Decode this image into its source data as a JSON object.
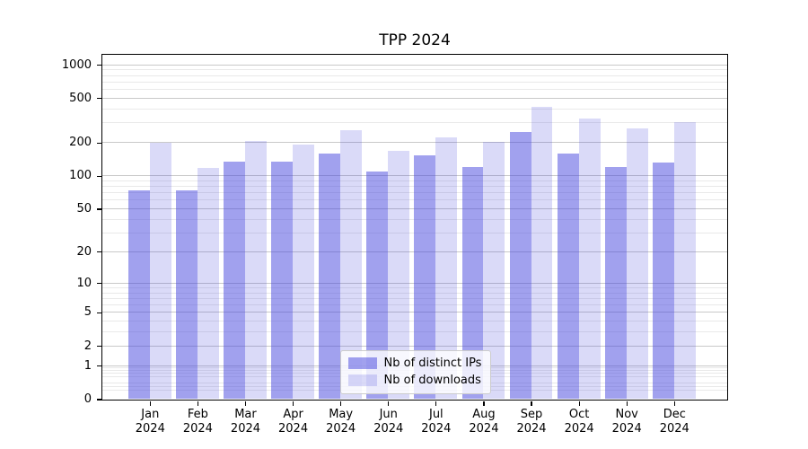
{
  "chart_data": {
    "type": "bar",
    "title": "TPP 2024",
    "categories": [
      "Jan 2024",
      "Feb 2024",
      "Mar 2024",
      "Apr 2024",
      "May 2024",
      "Jun 2024",
      "Jul 2024",
      "Aug 2024",
      "Sep 2024",
      "Oct 2024",
      "Nov 2024",
      "Dec 2024"
    ],
    "series": [
      {
        "name": "Nb of distinct IPs",
        "color": "rgba(68,68,221,0.5)",
        "values": [
          74,
          74,
          133,
          133,
          158,
          109,
          152,
          121,
          250,
          158,
          121,
          132
        ]
      },
      {
        "name": "Nb of downloads",
        "color": "rgba(68,68,221,0.2)",
        "values": [
          198,
          117,
          207,
          192,
          260,
          169,
          221,
          201,
          415,
          330,
          269,
          304
        ]
      }
    ],
    "yscale": "log10(1+y)",
    "ylim": [
      0,
      1240
    ],
    "yticks": [
      0,
      1,
      2,
      5,
      10,
      20,
      50,
      100,
      200,
      500,
      1000
    ],
    "ytick_labels": [
      "0",
      "1",
      "2",
      "5",
      "10",
      "20",
      "50",
      "100",
      "200",
      "500",
      "1000"
    ],
    "minor_gridlines": [
      0.2,
      0.3,
      0.4,
      0.6,
      0.7,
      0.8,
      0.9,
      3,
      4,
      6,
      7,
      8,
      9,
      30,
      40,
      60,
      70,
      80,
      90,
      300,
      400,
      600,
      700,
      800,
      900
    ],
    "grid": true,
    "legend_position": "lower center",
    "colors": {
      "grid_major": "#c9c9c9",
      "grid_minor": "#e9e9e9",
      "spine": "#000000",
      "background": "#ffffff"
    }
  }
}
